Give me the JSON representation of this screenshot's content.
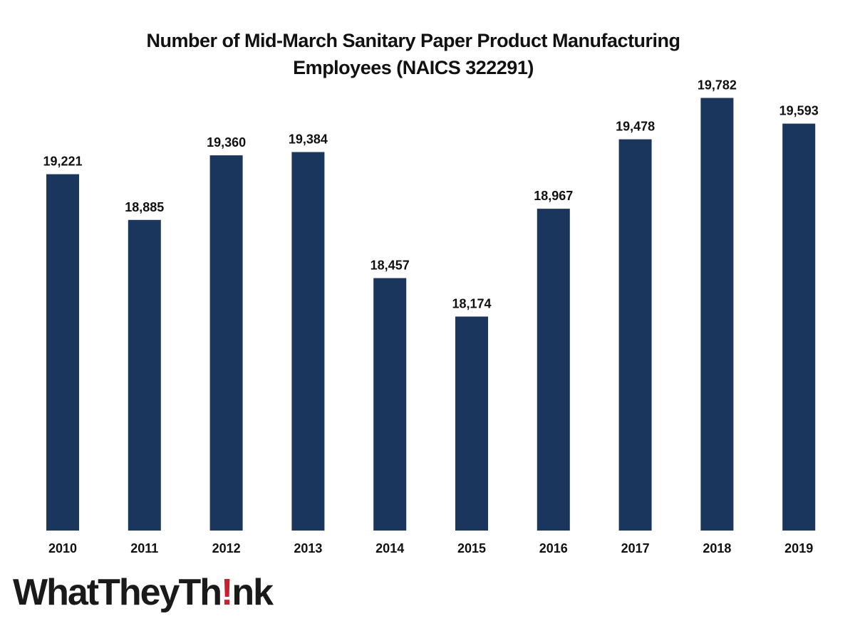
{
  "chart_data": {
    "type": "bar",
    "title_lines": [
      "Number of Mid-March Sanitary Paper Product Manufacturing",
      "Employees (NAICS 322291)"
    ],
    "categories": [
      "2010",
      "2011",
      "2012",
      "2013",
      "2014",
      "2015",
      "2016",
      "2017",
      "2018",
      "2019"
    ],
    "values": [
      19221,
      18885,
      19360,
      19384,
      18457,
      18174,
      18967,
      19478,
      19782,
      19593
    ],
    "value_labels": [
      "19,221",
      "18,885",
      "19,360",
      "19,384",
      "18,457",
      "18,174",
      "18,967",
      "19,478",
      "19,782",
      "19,593"
    ],
    "ylim": [
      16600,
      19900
    ],
    "grid": false,
    "legend": "none",
    "bar_color": "#1b365d"
  },
  "logo": {
    "text_before": "WhatTheyTh",
    "text_bang": "!",
    "text_after": "nk",
    "bang_color": "#c8202f"
  }
}
